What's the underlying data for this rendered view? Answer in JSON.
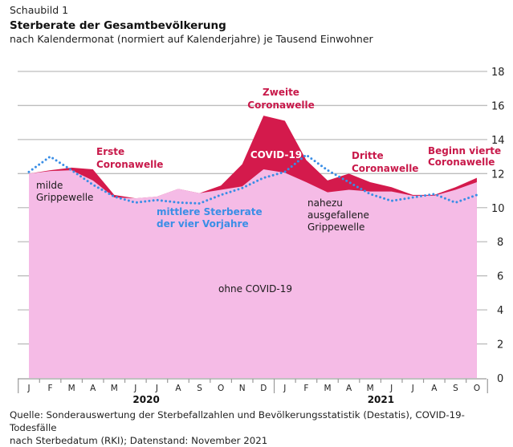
{
  "header": {
    "kicker": "Schaubild 1",
    "title": "Sterberate der Gesamtbevölkerung",
    "subtitle": "nach Kalendermonat (normiert auf Kalenderjahre) je Tausend Einwohner"
  },
  "footer": {
    "source_line1": "Quelle: Sonderauswertung der Sterbefallzahlen und Bevölkerungsstatistik (Destatis), COVID-19-Todesfälle",
    "source_line2": "nach Sterbedatum (RKI); Datenstand: November 2021"
  },
  "colors": {
    "ohne_covid": "#f5bbe6",
    "covid": "#d41a4c",
    "vorjahre": "#3a8ee6",
    "annotation_red": "#c8194a",
    "grid": "#bdbdbd"
  },
  "chart_data": {
    "type": "area",
    "title": "Sterberate der Gesamtbevölkerung",
    "subtitle": "nach Kalendermonat (normiert auf Kalenderjahre) je Tausend Einwohner",
    "xlabel": "",
    "ylabel": "",
    "ylim": [
      0,
      18
    ],
    "yticks": [
      0,
      2,
      4,
      6,
      8,
      10,
      12,
      14,
      16,
      18
    ],
    "y_axis_side": "right",
    "grid": true,
    "categories": [
      "J",
      "F",
      "M",
      "A",
      "M",
      "J",
      "J",
      "A",
      "S",
      "O",
      "N",
      "D",
      "J",
      "F",
      "M",
      "A",
      "M",
      "J",
      "J",
      "A",
      "S",
      "O"
    ],
    "years": [
      {
        "label": "2020",
        "start_index": 0,
        "end_index": 11
      },
      {
        "label": "2021",
        "start_index": 12,
        "end_index": 21
      }
    ],
    "series": [
      {
        "name": "ohne COVID-19",
        "kind": "area-base",
        "values": [
          12.0,
          12.15,
          12.2,
          11.6,
          10.6,
          10.55,
          10.65,
          11.1,
          10.85,
          11.05,
          11.25,
          12.25,
          12.05,
          11.5,
          10.9,
          11.05,
          10.95,
          10.95,
          10.7,
          10.7,
          11.05,
          11.5
        ]
      },
      {
        "name": "COVID-19",
        "kind": "area-stacked-total",
        "values": [
          12.0,
          12.2,
          12.35,
          12.25,
          10.75,
          10.55,
          10.65,
          11.1,
          10.85,
          11.3,
          12.55,
          15.4,
          15.1,
          12.8,
          11.6,
          12.0,
          11.5,
          11.2,
          10.75,
          10.75,
          11.2,
          11.75
        ]
      },
      {
        "name": "mittlere Sterberate der vier Vorjahre",
        "kind": "dotted-line",
        "values": [
          12.1,
          13.0,
          12.2,
          11.35,
          10.65,
          10.3,
          10.45,
          10.3,
          10.25,
          10.75,
          11.15,
          11.75,
          12.1,
          13.1,
          12.2,
          11.5,
          10.8,
          10.4,
          10.6,
          10.8,
          10.3,
          10.75
        ]
      }
    ],
    "annotations": [
      {
        "id": "erste",
        "lines": [
          "Erste",
          "Coronawelle"
        ],
        "style": "red-bold"
      },
      {
        "id": "zweite",
        "lines": [
          "Zweite",
          "Coronawelle"
        ],
        "style": "red-bold"
      },
      {
        "id": "dritte",
        "lines": [
          "Dritte",
          "Coronawelle"
        ],
        "style": "red-bold"
      },
      {
        "id": "vierte",
        "lines": [
          "Beginn vierte",
          "Coronawelle"
        ],
        "style": "red-bold"
      },
      {
        "id": "covid",
        "lines": [
          "COVID-19"
        ],
        "style": "white-bold"
      },
      {
        "id": "milde",
        "lines": [
          "milde",
          "Grippewelle"
        ],
        "style": "dark"
      },
      {
        "id": "nahezu",
        "lines": [
          "nahezu",
          "ausgefallene",
          "Grippewelle"
        ],
        "style": "dark"
      },
      {
        "id": "vorjahre",
        "lines": [
          "mittlere Sterberate",
          "der vier Vorjahre"
        ],
        "style": "blue-bold"
      },
      {
        "id": "ohne",
        "lines": [
          "ohne COVID-19"
        ],
        "style": "dark"
      }
    ]
  }
}
